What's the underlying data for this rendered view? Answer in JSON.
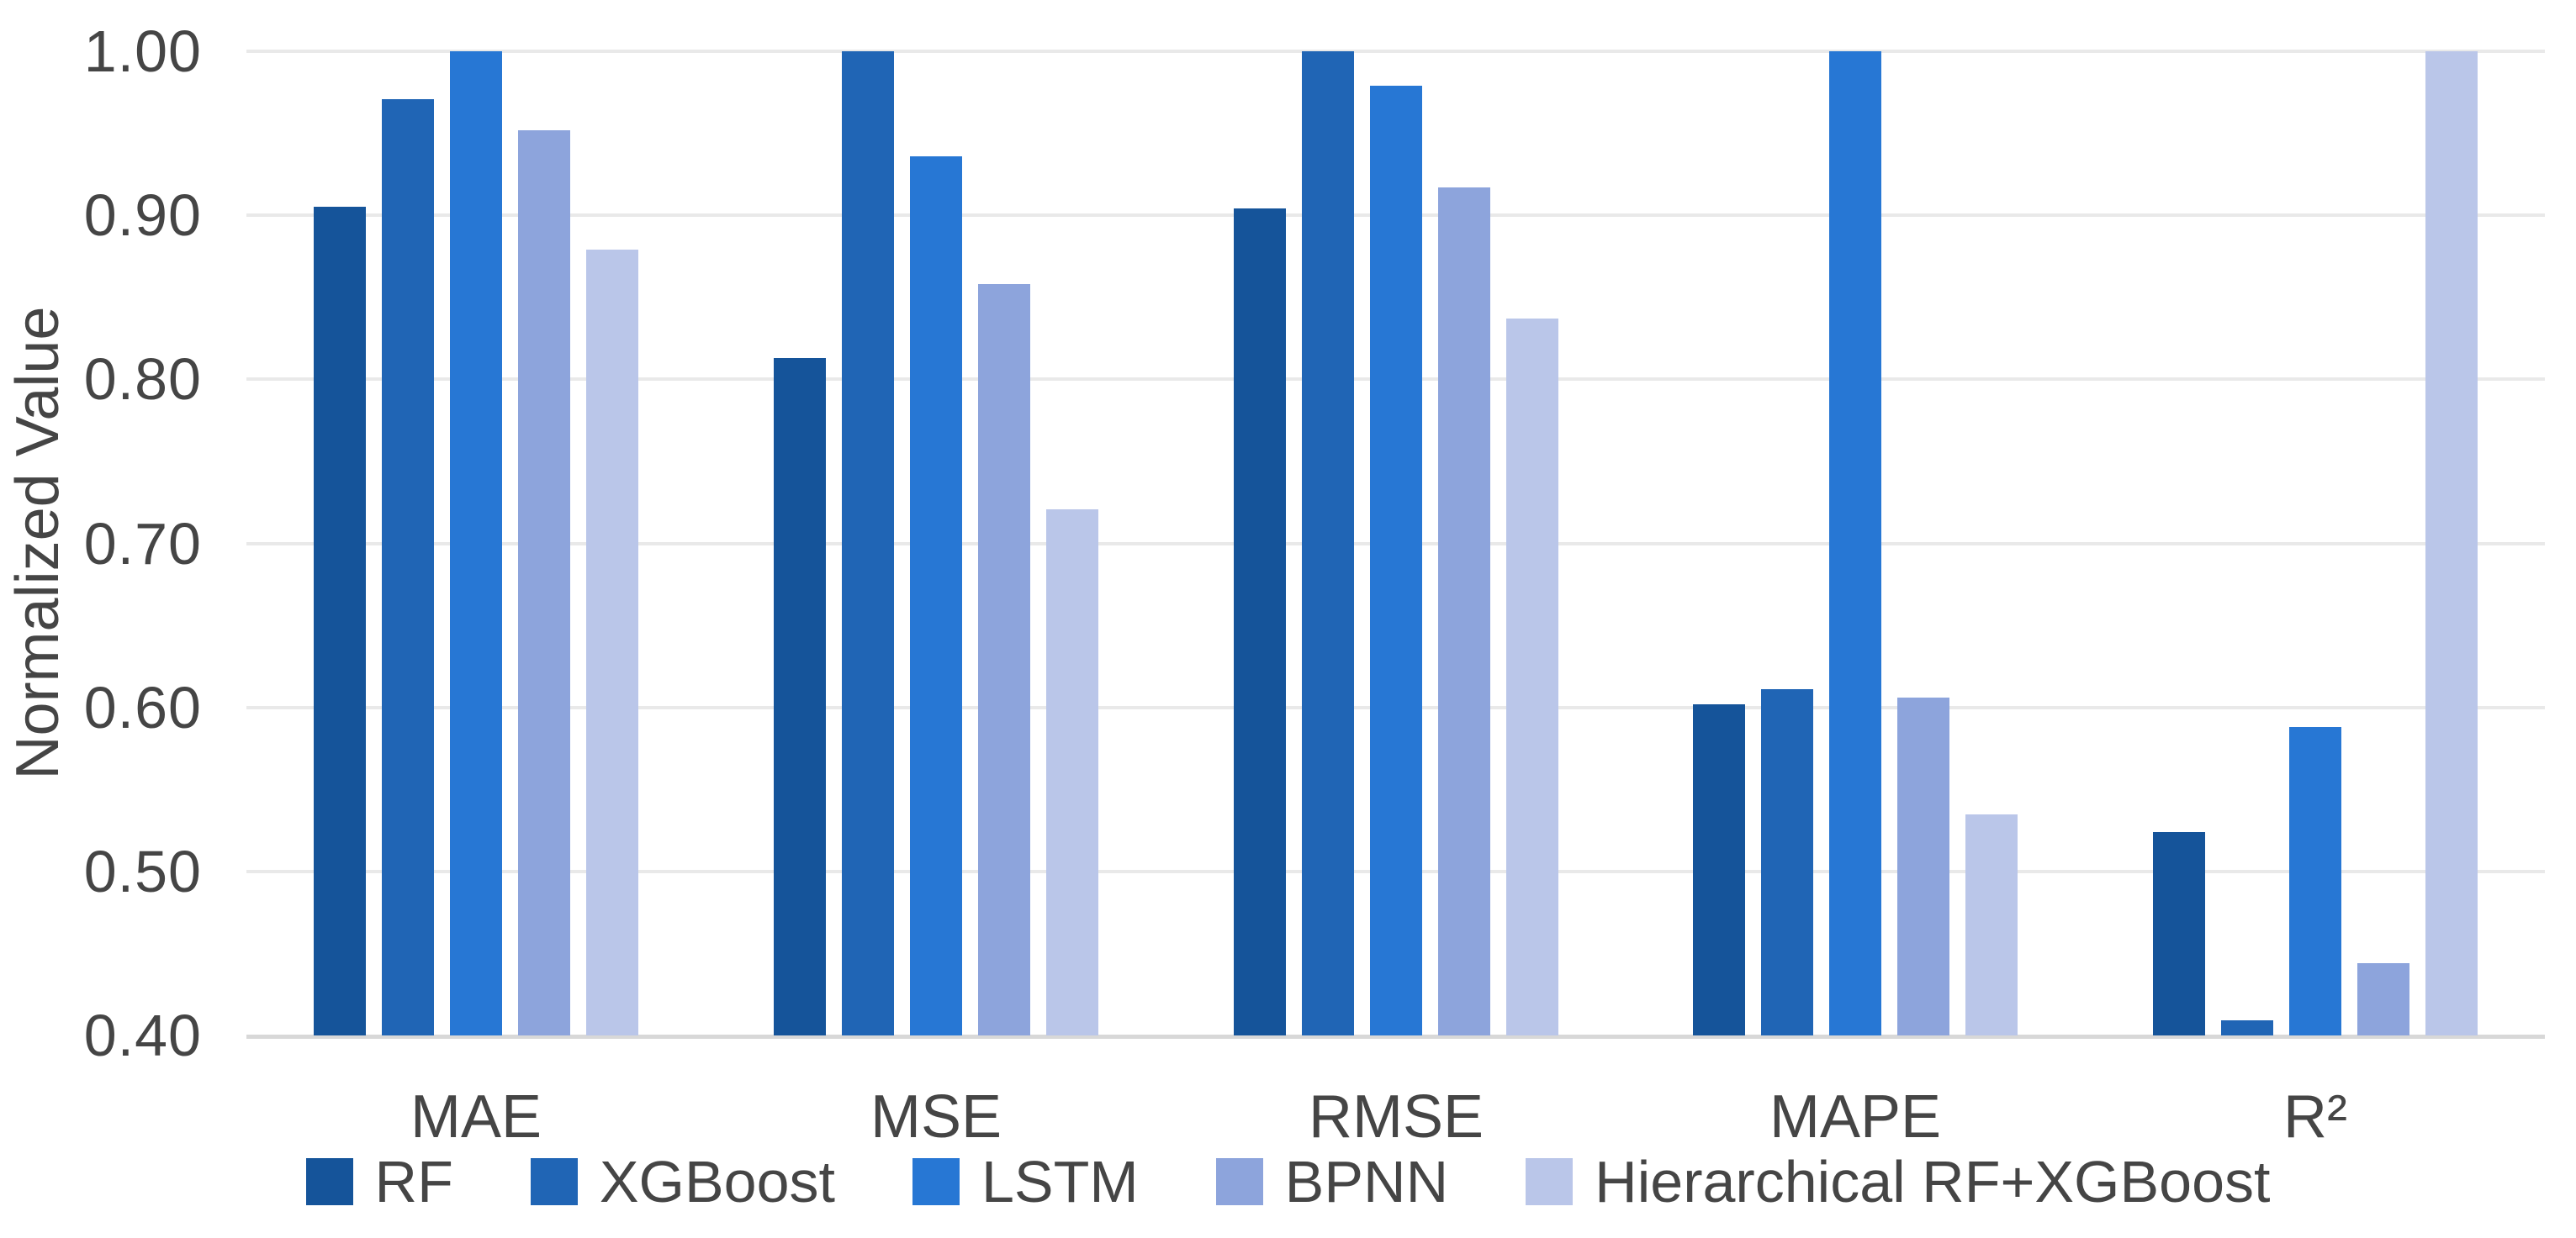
{
  "chart_data": {
    "type": "bar",
    "title": "",
    "xlabel": "",
    "ylabel": "Normalized Value",
    "categories": [
      "MAE",
      "MSE",
      "RMSE",
      "MAPE",
      "R²"
    ],
    "series": [
      {
        "name": "RF",
        "color": "#15549A",
        "values": [
          0.905,
          0.813,
          0.904,
          0.602,
          0.524
        ]
      },
      {
        "name": "XGBoost",
        "color": "#2065B5",
        "values": [
          0.971,
          1.0,
          1.0,
          0.611,
          0.409
        ]
      },
      {
        "name": "LSTM",
        "color": "#2777D4",
        "values": [
          1.0,
          0.936,
          0.979,
          1.0,
          0.588
        ]
      },
      {
        "name": "BPNN",
        "color": "#8DA4DC",
        "values": [
          0.952,
          0.858,
          0.917,
          0.606,
          0.444
        ]
      },
      {
        "name": "Hierarchical RF+XGBoost",
        "color": "#BAC6E9",
        "values": [
          0.879,
          0.721,
          0.837,
          0.535,
          1.0
        ]
      }
    ],
    "ylim": [
      0.4,
      1.0
    ],
    "yticks": [
      1.0,
      0.9,
      0.8,
      0.7,
      0.6,
      0.5,
      0.4
    ],
    "ytick_labels": [
      "1.00",
      "0.90",
      "0.80",
      "0.70",
      "0.60",
      "0.50",
      "0.40"
    ],
    "grid": true,
    "legend_position": "bottom"
  },
  "colors": {
    "background": "#FFFFFF",
    "text": "#454545",
    "gridline": "#E9E9E9",
    "axis_line": "#D8D8D8"
  }
}
